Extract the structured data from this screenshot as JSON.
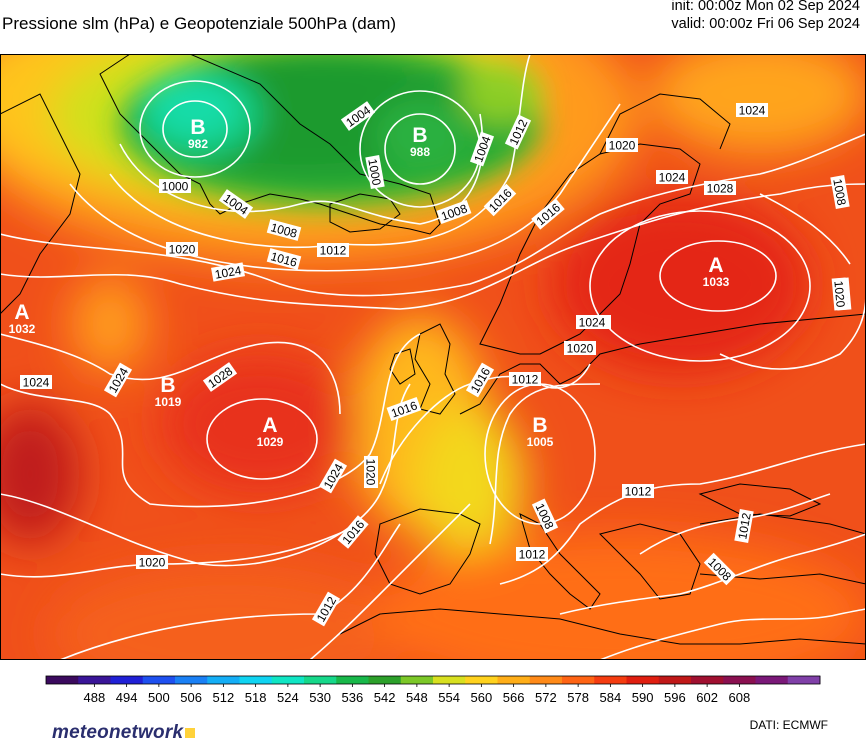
{
  "header": {
    "title": "Pressione slm (hPa) e Geopotenziale 500hPa (dam)",
    "init": "init: 00:00z Mon 02 Sep 2024",
    "valid": "valid: 00:00z Fri 06 Sep 2024"
  },
  "footer": {
    "logo_text": "meteonetwork",
    "source": "DATI:  ECMWF"
  },
  "colorbar": {
    "ticks": [
      "488",
      "494",
      "500",
      "506",
      "512",
      "518",
      "524",
      "530",
      "536",
      "542",
      "548",
      "554",
      "560",
      "566",
      "572",
      "578",
      "584",
      "590",
      "596",
      "602",
      "608"
    ],
    "colors": [
      "#3b0a5e",
      "#3a1598",
      "#2020d6",
      "#1e50f0",
      "#1a80f5",
      "#14aef6",
      "#10d4f2",
      "#10e6c4",
      "#16d88a",
      "#18b84a",
      "#2ca02a",
      "#7cc828",
      "#d8e020",
      "#ffd21e",
      "#ffae18",
      "#ff8a18",
      "#ff6414",
      "#f53c10",
      "#e01e10",
      "#c01818",
      "#a01030",
      "#8a1050",
      "#7a1878",
      "#8040a8"
    ]
  },
  "map": {
    "centers": [
      {
        "type": "B",
        "value": "982"
      },
      {
        "type": "B",
        "value": "988"
      },
      {
        "type": "A",
        "value": "1033"
      },
      {
        "type": "A",
        "value": "1032"
      },
      {
        "type": "B",
        "value": "1019"
      },
      {
        "type": "A",
        "value": "1029"
      },
      {
        "type": "B",
        "value": "1005"
      }
    ],
    "isobar_labels": [
      "1000",
      "1004",
      "1004",
      "1000",
      "1004",
      "1008",
      "1012",
      "1016",
      "1020",
      "1024",
      "1016",
      "1012",
      "1008",
      "1020",
      "1024",
      "1028",
      "1024",
      "1016",
      "1020",
      "1024",
      "1028",
      "1024",
      "1024",
      "1028",
      "1016",
      "1024",
      "1020",
      "1020",
      "1016",
      "1012",
      "1016",
      "1012",
      "1008",
      "1012",
      "1008",
      "1012",
      "1012",
      "1008",
      "1024",
      "1020"
    ]
  }
}
